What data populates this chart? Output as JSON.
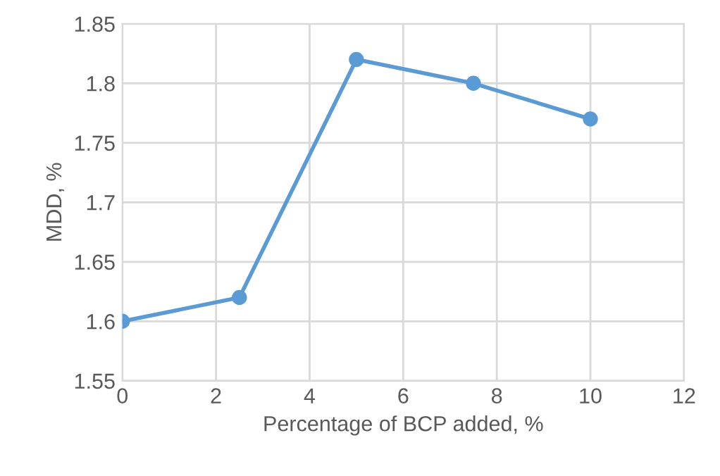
{
  "chart_data": {
    "type": "line",
    "xlabel": "Percentage of BCP added, %",
    "ylabel": "MDD, %",
    "x": [
      0,
      2.5,
      5,
      7.5,
      10
    ],
    "series": [
      {
        "color": "#5b9bd5",
        "values": [
          1.6,
          1.62,
          1.82,
          1.8,
          1.77
        ]
      }
    ],
    "xlim": [
      0,
      12
    ],
    "xticks": [
      0,
      2,
      4,
      6,
      8,
      10,
      12
    ],
    "ylim": [
      1.55,
      1.85
    ],
    "yticks": [
      1.55,
      1.6,
      1.65,
      1.7,
      1.75,
      1.8,
      1.85
    ],
    "grid": true,
    "marker": "circle",
    "line_style": "solid"
  }
}
